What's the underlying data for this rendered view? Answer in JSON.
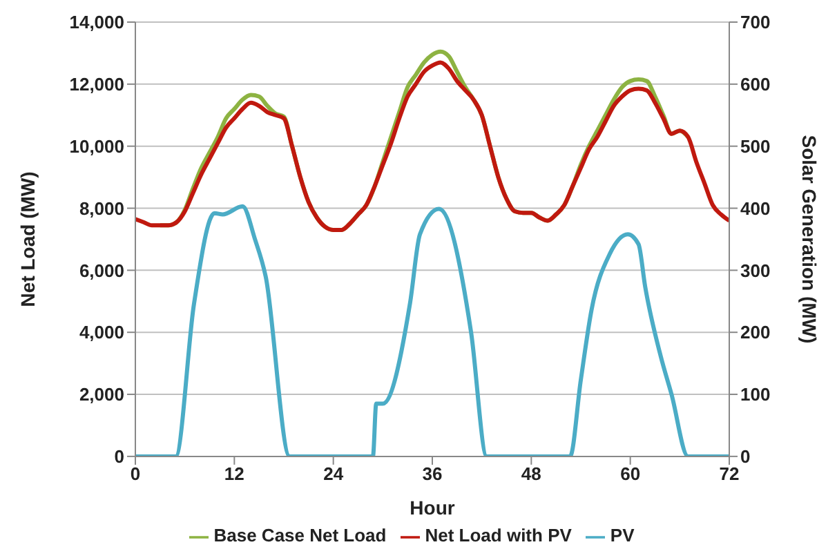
{
  "chart_data": {
    "type": "line",
    "xlabel": "Hour",
    "ylabel": "Net Load (MW)",
    "y2label": "Solar Generation (MW)",
    "xlim": [
      0,
      72
    ],
    "xticks": [
      0,
      12,
      24,
      36,
      48,
      60,
      72
    ],
    "ylim": [
      0,
      14000
    ],
    "yticks": [
      {
        "value": 0,
        "label": "0"
      },
      {
        "value": 2000,
        "label": "2,000"
      },
      {
        "value": 4000,
        "label": "4,000"
      },
      {
        "value": 6000,
        "label": "6,000"
      },
      {
        "value": 8000,
        "label": "8,000"
      },
      {
        "value": 10000,
        "label": "10,000"
      },
      {
        "value": 12000,
        "label": "12,000"
      },
      {
        "value": 14000,
        "label": "14,000"
      }
    ],
    "y2lim": [
      0,
      700
    ],
    "y2ticks": [
      0,
      100,
      200,
      300,
      400,
      500,
      600,
      700
    ],
    "grid": "y",
    "legend": "bottom",
    "marker": "none",
    "line_style": "solid",
    "x": [
      0,
      1,
      2,
      3,
      4,
      5,
      6,
      7,
      8,
      9,
      10,
      11,
      12,
      13,
      14,
      15,
      16,
      17,
      18,
      19,
      20,
      21,
      22,
      23,
      24,
      25,
      26,
      27,
      28,
      29,
      30,
      31,
      32,
      33,
      34,
      35,
      36,
      37,
      38,
      39,
      40,
      41,
      42,
      43,
      44,
      45,
      46,
      47,
      48,
      49,
      50,
      51,
      52,
      53,
      54,
      55,
      56,
      57,
      58,
      59,
      60,
      61,
      62,
      63,
      64,
      65,
      66,
      67,
      68,
      69,
      70,
      71,
      72
    ],
    "series": [
      {
        "name": "Base Case Net Load",
        "color": "#8db342",
        "values": [
          null,
          null,
          null,
          7450,
          7450,
          7550,
          7950,
          8650,
          9300,
          9800,
          10300,
          10900,
          11200,
          11500,
          11650,
          11600,
          11300,
          11050,
          10950,
          10000,
          9000,
          8200,
          7700,
          7400,
          7300,
          7300,
          7500,
          7800,
          8100,
          8700,
          9500,
          10300,
          11100,
          11900,
          12300,
          12700,
          12950,
          13050,
          12900,
          12400,
          11900,
          11500,
          11000,
          10000,
          9000,
          8300,
          7900,
          7850,
          7850,
          7700,
          7600,
          7800,
          8100,
          8700,
          9400,
          10000,
          10500,
          11000,
          11500,
          11900,
          12100,
          12150,
          12100,
          11600,
          11000,
          10400,
          10500,
          10300,
          null,
          null,
          null,
          null,
          null
        ]
      },
      {
        "name": "Net Load with PV",
        "color": "#c0190f",
        "values": [
          7650,
          7550,
          7450,
          7450,
          7450,
          7550,
          7900,
          8500,
          9100,
          9600,
          10100,
          10600,
          10900,
          11200,
          11400,
          11300,
          11100,
          11000,
          10900,
          10000,
          9000,
          8200,
          7700,
          7400,
          7300,
          7300,
          7500,
          7800,
          8100,
          8700,
          9400,
          10100,
          10900,
          11600,
          12000,
          12400,
          12600,
          12700,
          12500,
          12100,
          11800,
          11500,
          11000,
          10000,
          9000,
          8300,
          7900,
          7850,
          7850,
          7700,
          7600,
          7800,
          8100,
          8700,
          9300,
          9900,
          10300,
          10800,
          11300,
          11600,
          11800,
          11850,
          11800,
          11400,
          10900,
          10400,
          10500,
          10300,
          9500,
          8800,
          8100,
          7800,
          7600
        ]
      },
      {
        "name": "PV",
        "color": "#4bacc6",
        "axis": "y2",
        "x": [
          0,
          4.9,
          7.1,
          9.6,
          10.6,
          13,
          14.5,
          15.8,
          18.7,
          28.8,
          29.2,
          30,
          33.3,
          34.5,
          36.8,
          40.7,
          42.6,
          52.7,
          54,
          55.3,
          57.5,
          59.7,
          61,
          61.8,
          63.7,
          65,
          67,
          72
        ],
        "values": [
          0,
          0,
          245,
          392,
          390,
          403,
          350,
          290,
          0,
          0,
          85,
          85,
          247,
          358,
          399,
          200,
          0,
          0,
          123,
          236,
          326,
          358,
          342,
          274,
          161,
          100,
          0,
          0
        ]
      }
    ]
  }
}
